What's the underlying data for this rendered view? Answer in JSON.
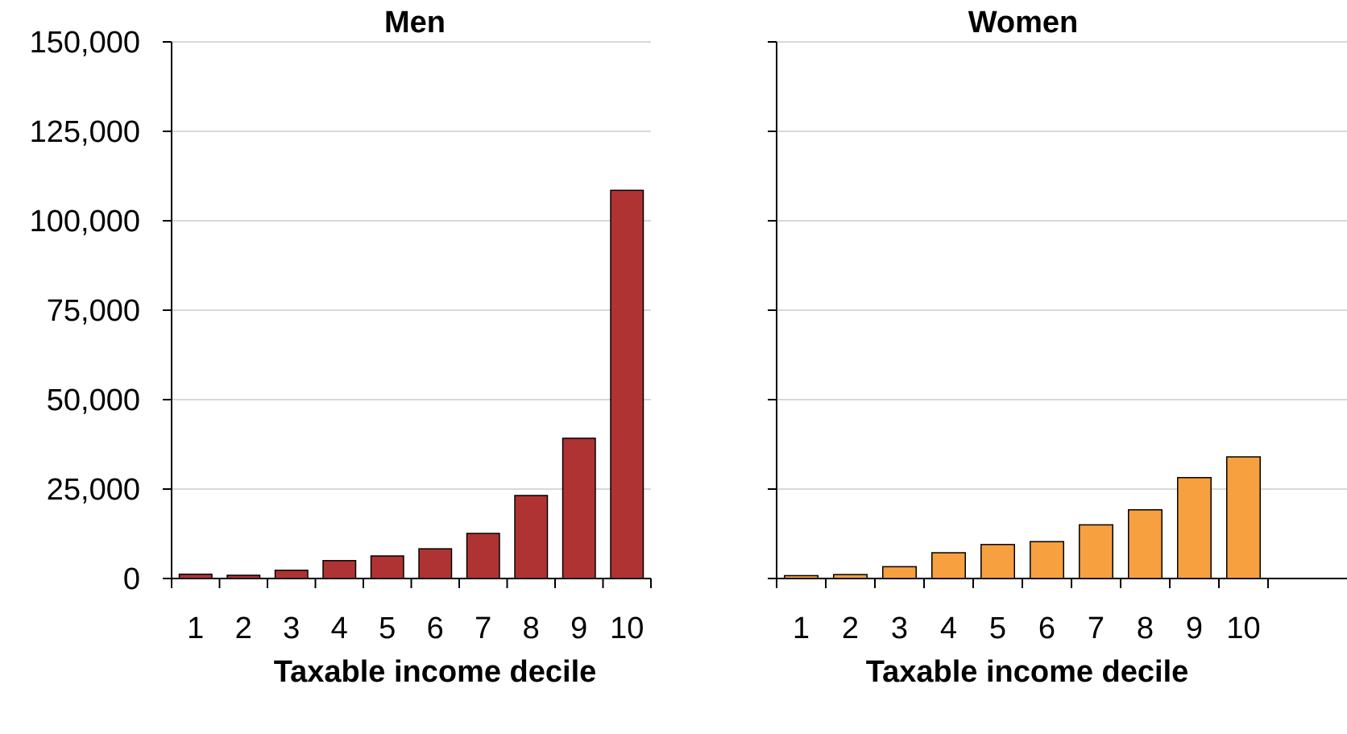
{
  "chart_data": [
    {
      "type": "bar",
      "title": "Men",
      "xlabel": "Taxable income decile",
      "ylabel": "",
      "categories": [
        "1",
        "2",
        "3",
        "4",
        "5",
        "6",
        "7",
        "8",
        "9",
        "10"
      ],
      "values": [
        1200,
        900,
        2300,
        5000,
        6300,
        8300,
        12600,
        23200,
        39200,
        108500
      ],
      "ylim": [
        0,
        150000
      ],
      "yticks": [
        "0",
        "25,000",
        "50,000",
        "75,000",
        "100,000",
        "125,000",
        "150,000"
      ],
      "bar_color": "#b03333",
      "grid": true,
      "legend": "none"
    },
    {
      "type": "bar",
      "title": "Women",
      "xlabel": "Taxable income decile",
      "ylabel": "",
      "categories": [
        "1",
        "2",
        "3",
        "4",
        "5",
        "6",
        "7",
        "8",
        "9",
        "10"
      ],
      "values": [
        800,
        1100,
        3300,
        7200,
        9500,
        10300,
        15000,
        19200,
        28200,
        34000
      ],
      "ylim": [
        0,
        150000
      ],
      "bar_color": "#f7a040",
      "grid": true,
      "legend": "none"
    }
  ],
  "colors": {
    "grid": "#cccccc",
    "axis": "#000000",
    "bar_edge": "#000000"
  }
}
